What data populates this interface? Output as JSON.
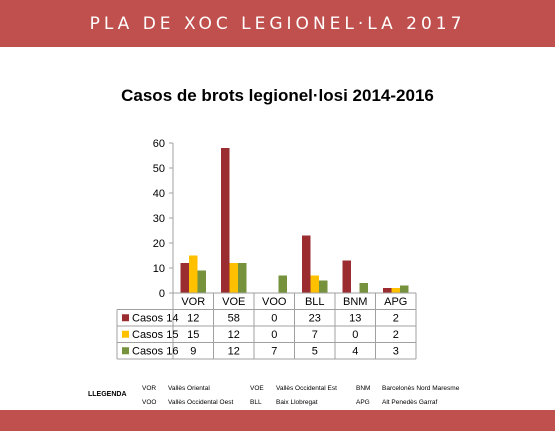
{
  "header": {
    "title": "PLA DE XOC LEGIONEL·LA 2017"
  },
  "colors": {
    "band": "#c0504d",
    "series": [
      "#9b2d30",
      "#ffc000",
      "#76923c"
    ],
    "grid": "#bfbfbf"
  },
  "chart_data": {
    "type": "bar",
    "title": "Casos de brots legionel·losi 2014-2016",
    "categories": [
      "VOR",
      "VOE",
      "VOO",
      "BLL",
      "BNM",
      "APG"
    ],
    "series": [
      {
        "name": "Casos 14",
        "values": [
          12,
          58,
          0,
          23,
          13,
          2
        ]
      },
      {
        "name": "Casos 15",
        "values": [
          15,
          12,
          0,
          7,
          0,
          2
        ]
      },
      {
        "name": "Casos 16",
        "values": [
          9,
          12,
          7,
          5,
          4,
          3
        ]
      }
    ],
    "ylim": [
      0,
      60
    ],
    "yticks": [
      "0",
      "10",
      "20",
      "30",
      "40",
      "50",
      "60"
    ],
    "table": [
      [
        "12",
        "58",
        "0",
        "23",
        "13",
        "2"
      ],
      [
        "15",
        "12",
        "0",
        "7",
        "0",
        "2"
      ],
      [
        "9",
        "12",
        "7",
        "5",
        "4",
        "3"
      ]
    ],
    "grid": false,
    "legend": "data-table"
  },
  "legend": {
    "title": "LLEGENDA",
    "items": [
      {
        "code": "VOR",
        "name": "Vallès Oriental"
      },
      {
        "code": "VOO",
        "name": "Vallès Occidental Oest"
      },
      {
        "code": "VOE",
        "name": "Vallès  Occidental Est"
      },
      {
        "code": "BLL",
        "name": "Baix Llobregat"
      },
      {
        "code": "BNM",
        "name": "Barcelonès Nord Maresme"
      },
      {
        "code": "APG",
        "name": "Alt Penedès Garraf"
      }
    ]
  }
}
